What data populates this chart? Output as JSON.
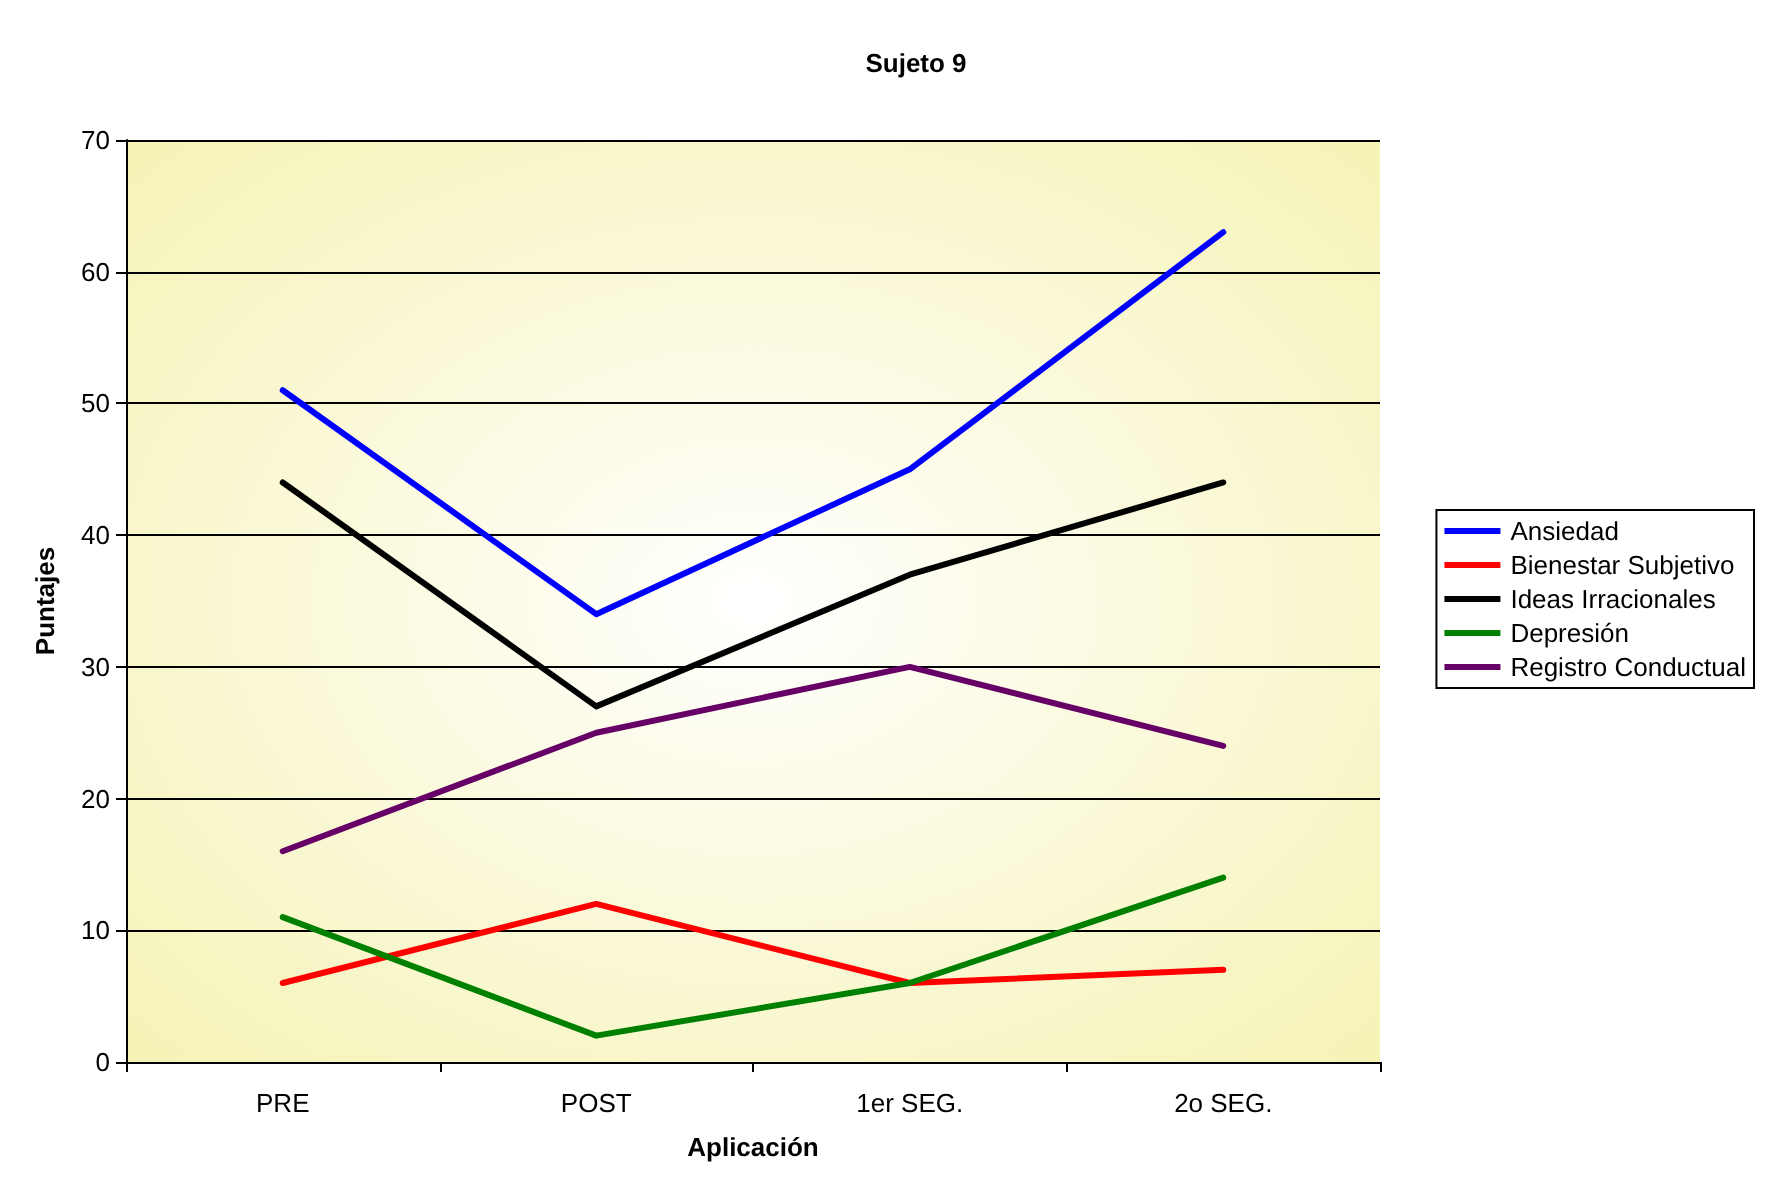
{
  "chart_data": {
    "type": "line",
    "title": "Sujeto 9",
    "xlabel": "Aplicación",
    "ylabel": "Puntajes",
    "categories": [
      "PRE",
      "POST",
      "1er SEG.",
      "2o SEG."
    ],
    "series": [
      {
        "name": "Ansiedad",
        "color": "#0000ff",
        "values": [
          51,
          34,
          45,
          63
        ]
      },
      {
        "name": "Bienestar Subjetivo",
        "color": "#ff0000",
        "values": [
          6,
          12,
          6,
          7
        ]
      },
      {
        "name": "Ideas Irracionales",
        "color": "#000000",
        "values": [
          44,
          27,
          37,
          44
        ]
      },
      {
        "name": "Depresión",
        "color": "#008000",
        "values": [
          11,
          2,
          6,
          14
        ]
      },
      {
        "name": "Registro Conductual",
        "color": "#660066",
        "values": [
          16,
          25,
          30,
          24
        ]
      }
    ],
    "ylim": [
      0,
      70
    ],
    "yticks": [
      0,
      10,
      20,
      30,
      40,
      50,
      60,
      70
    ],
    "grid": "y",
    "legend": "right",
    "marker": "none",
    "line_style": "solid"
  }
}
